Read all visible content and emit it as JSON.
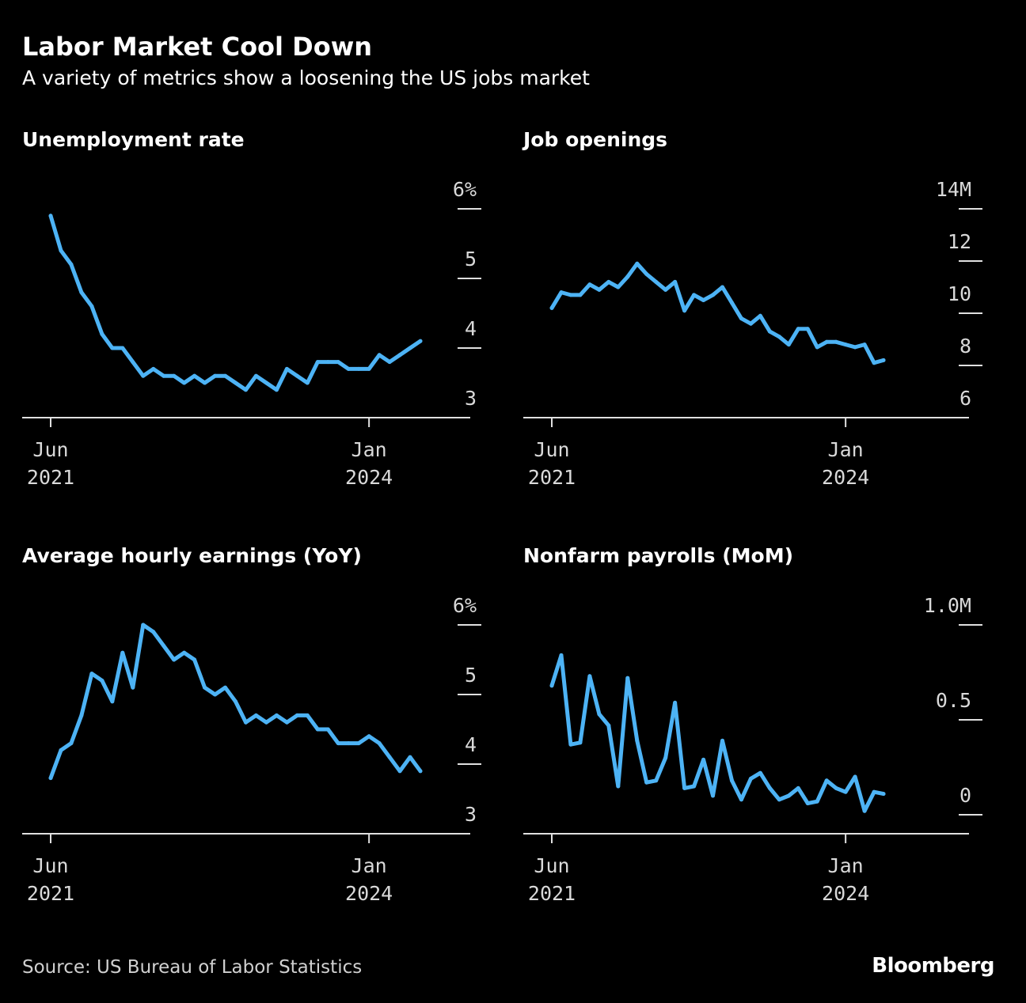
{
  "header": {
    "title": "Labor Market Cool Down",
    "subtitle": "A variety of metrics show a loosening the US jobs market"
  },
  "footer": {
    "source": "Source: US Bureau of Labor Statistics",
    "brand": "Bloomberg"
  },
  "colors": {
    "background": "#000000",
    "line": "#4db3f5",
    "axis": "#e0e0e0",
    "text": "#ffffff"
  },
  "chart_data": [
    {
      "type": "line",
      "title": "Unemployment rate",
      "x_tick_labels": [
        [
          "Jun",
          "2021"
        ],
        [
          "Jan",
          "2024"
        ]
      ],
      "x_ticks": [
        "2021-06",
        "2024-01"
      ],
      "y_ticks": [
        3,
        4,
        5,
        6
      ],
      "y_tick_labels": [
        "3",
        "4",
        "5",
        "6%"
      ],
      "ylim": [
        3,
        6
      ],
      "xlim": [
        "2021-06",
        "2024-06"
      ],
      "grid": false,
      "x": [
        "2021-06",
        "2021-07",
        "2021-08",
        "2021-09",
        "2021-10",
        "2021-11",
        "2021-12",
        "2022-01",
        "2022-02",
        "2022-03",
        "2022-04",
        "2022-05",
        "2022-06",
        "2022-07",
        "2022-08",
        "2022-09",
        "2022-10",
        "2022-11",
        "2022-12",
        "2023-01",
        "2023-02",
        "2023-03",
        "2023-04",
        "2023-05",
        "2023-06",
        "2023-07",
        "2023-08",
        "2023-09",
        "2023-10",
        "2023-11",
        "2023-12",
        "2024-01",
        "2024-02",
        "2024-03",
        "2024-04",
        "2024-05",
        "2024-06"
      ],
      "values": [
        5.9,
        5.4,
        5.2,
        4.8,
        4.6,
        4.2,
        4.0,
        4.0,
        3.8,
        3.6,
        3.7,
        3.6,
        3.6,
        3.5,
        3.6,
        3.5,
        3.6,
        3.6,
        3.5,
        3.4,
        3.6,
        3.5,
        3.4,
        3.7,
        3.6,
        3.5,
        3.8,
        3.8,
        3.8,
        3.7,
        3.7,
        3.7,
        3.9,
        3.8,
        3.9,
        4.0,
        4.1
      ]
    },
    {
      "type": "line",
      "title": "Job openings",
      "x_tick_labels": [
        [
          "Jun",
          "2021"
        ],
        [
          "Jan",
          "2024"
        ]
      ],
      "x_ticks": [
        "2021-06",
        "2024-01"
      ],
      "y_ticks": [
        6,
        8,
        10,
        12,
        14
      ],
      "y_tick_labels": [
        "6",
        "8",
        "10",
        "12",
        "14M"
      ],
      "ylim": [
        6,
        14
      ],
      "xlim": [
        "2021-06",
        "2024-06"
      ],
      "grid": false,
      "x": [
        "2021-06",
        "2021-07",
        "2021-08",
        "2021-09",
        "2021-10",
        "2021-11",
        "2021-12",
        "2022-01",
        "2022-02",
        "2022-03",
        "2022-04",
        "2022-05",
        "2022-06",
        "2022-07",
        "2022-08",
        "2022-09",
        "2022-10",
        "2022-11",
        "2022-12",
        "2023-01",
        "2023-02",
        "2023-03",
        "2023-04",
        "2023-05",
        "2023-06",
        "2023-07",
        "2023-08",
        "2023-09",
        "2023-10",
        "2023-11",
        "2023-12",
        "2024-01",
        "2024-02",
        "2024-03",
        "2024-04",
        "2024-05"
      ],
      "values": [
        10.2,
        10.8,
        10.7,
        10.7,
        11.1,
        10.9,
        11.2,
        11.0,
        11.4,
        11.9,
        11.5,
        11.2,
        10.9,
        11.2,
        10.1,
        10.7,
        10.5,
        10.7,
        11.0,
        10.4,
        9.8,
        9.6,
        9.9,
        9.3,
        9.1,
        8.8,
        9.4,
        9.4,
        8.7,
        8.9,
        8.9,
        8.8,
        8.7,
        8.8,
        8.1,
        8.2
      ]
    },
    {
      "type": "line",
      "title": "Average hourly earnings (YoY)",
      "x_tick_labels": [
        [
          "Jun",
          "2021"
        ],
        [
          "Jan",
          "2024"
        ]
      ],
      "x_ticks": [
        "2021-06",
        "2024-01"
      ],
      "y_ticks": [
        3,
        4,
        5,
        6
      ],
      "y_tick_labels": [
        "3",
        "4",
        "5",
        "6%"
      ],
      "ylim": [
        3,
        6
      ],
      "xlim": [
        "2021-06",
        "2024-06"
      ],
      "grid": false,
      "x": [
        "2021-06",
        "2021-07",
        "2021-08",
        "2021-09",
        "2021-10",
        "2021-11",
        "2021-12",
        "2022-01",
        "2022-02",
        "2022-03",
        "2022-04",
        "2022-05",
        "2022-06",
        "2022-07",
        "2022-08",
        "2022-09",
        "2022-10",
        "2022-11",
        "2022-12",
        "2023-01",
        "2023-02",
        "2023-03",
        "2023-04",
        "2023-05",
        "2023-06",
        "2023-07",
        "2023-08",
        "2023-09",
        "2023-10",
        "2023-11",
        "2023-12",
        "2024-01",
        "2024-02",
        "2024-03",
        "2024-04",
        "2024-05",
        "2024-06"
      ],
      "values": [
        3.8,
        4.2,
        4.3,
        4.7,
        5.3,
        5.2,
        4.9,
        5.6,
        5.1,
        6.0,
        5.9,
        5.7,
        5.5,
        5.6,
        5.5,
        5.1,
        5.0,
        5.1,
        4.9,
        4.6,
        4.7,
        4.6,
        4.7,
        4.6,
        4.7,
        4.7,
        4.5,
        4.5,
        4.3,
        4.3,
        4.3,
        4.4,
        4.3,
        4.1,
        3.9,
        4.1,
        3.9
      ]
    },
    {
      "type": "line",
      "title": "Nonfarm payrolls (MoM)",
      "x_tick_labels": [
        [
          "Jun",
          "2021"
        ],
        [
          "Jan",
          "2024"
        ]
      ],
      "x_ticks": [
        "2021-06",
        "2024-01"
      ],
      "y_ticks": [
        0,
        0.5,
        1.0
      ],
      "y_tick_labels": [
        "0",
        "0.5",
        "1.0M"
      ],
      "ylim": [
        -0.1,
        1.0
      ],
      "xlim": [
        "2021-06",
        "2024-06"
      ],
      "grid": false,
      "x": [
        "2021-06",
        "2021-07",
        "2021-08",
        "2021-09",
        "2021-10",
        "2021-11",
        "2021-12",
        "2022-01",
        "2022-02",
        "2022-03",
        "2022-04",
        "2022-05",
        "2022-06",
        "2022-07",
        "2022-08",
        "2022-09",
        "2022-10",
        "2022-11",
        "2022-12",
        "2023-01",
        "2023-02",
        "2023-03",
        "2023-04",
        "2023-05",
        "2023-06",
        "2023-07",
        "2023-08",
        "2023-09",
        "2023-10",
        "2023-11",
        "2023-12",
        "2024-01",
        "2024-02",
        "2024-03",
        "2024-04",
        "2024-05"
      ],
      "values": [
        0.68,
        0.84,
        0.37,
        0.38,
        0.73,
        0.53,
        0.47,
        0.15,
        0.72,
        0.39,
        0.17,
        0.18,
        0.3,
        0.59,
        0.14,
        0.15,
        0.29,
        0.1,
        0.39,
        0.18,
        0.08,
        0.19,
        0.22,
        0.14,
        0.08,
        0.1,
        0.14,
        0.06,
        0.07,
        0.18,
        0.14,
        0.12,
        0.2,
        0.02,
        0.12,
        0.11
      ]
    }
  ]
}
